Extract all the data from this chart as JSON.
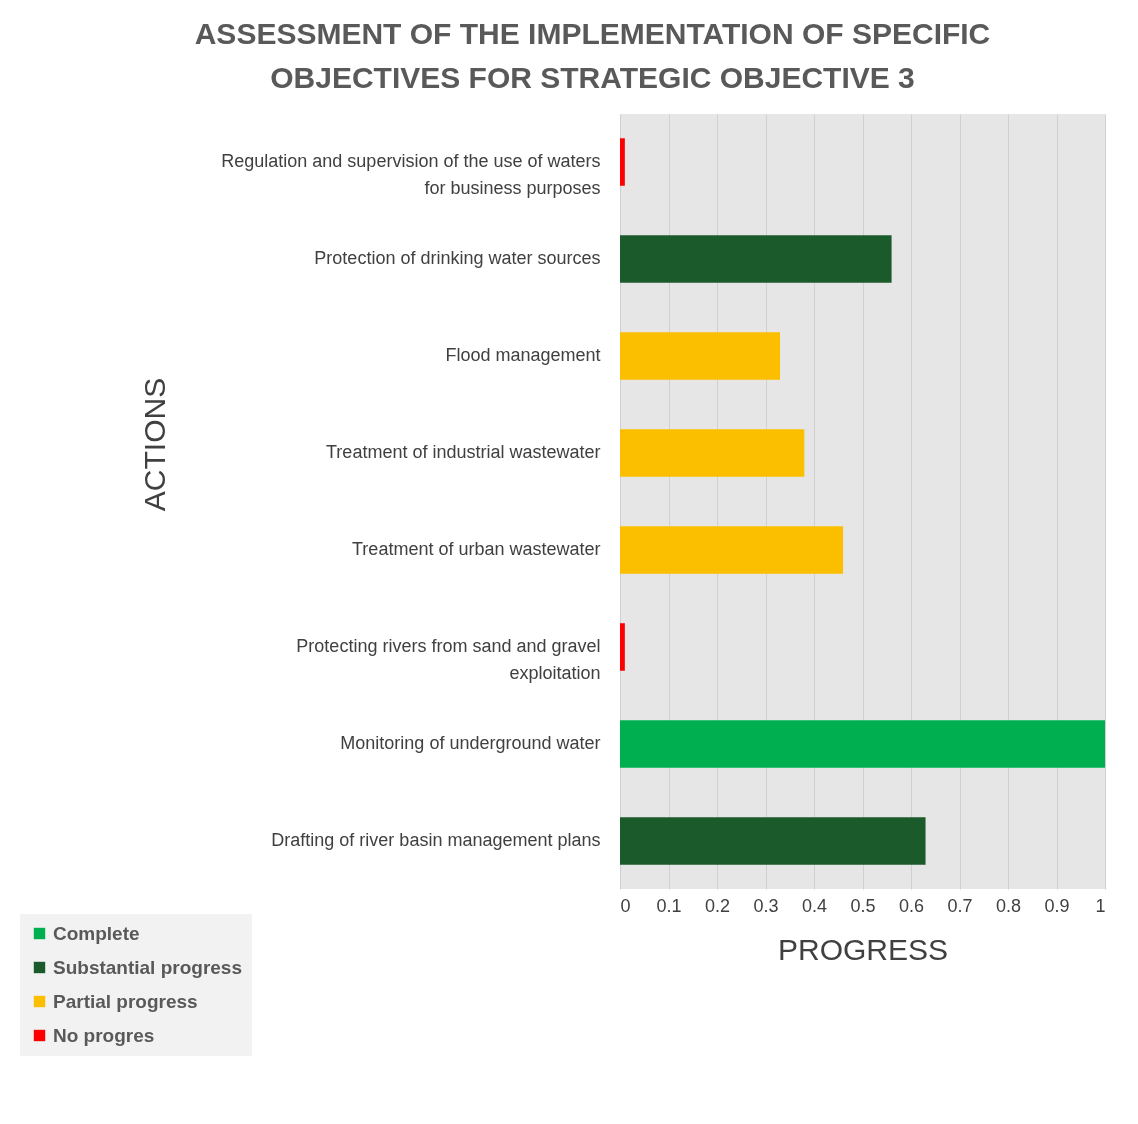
{
  "chart_data": {
    "type": "bar",
    "orientation": "horizontal",
    "title": "ASSESSMENT OF THE IMPLEMENTATION OF SPECIFIC OBJECTIVES FOR STRATEGIC OBJECTIVE 3",
    "xlabel": "PROGRESS",
    "ylabel": "ACTIONS",
    "categories": [
      "Regulation and supervision of the use of waters for business purposes",
      "Protection of drinking water sources",
      "Flood management",
      "Treatment of industrial wastewater",
      "Treatment of urban wastewater",
      "Protecting rivers from sand and gravel exploitation",
      "Monitoring of underground water",
      "Drafting of river basin management plans"
    ],
    "series": [
      {
        "name": "Complete",
        "color": "#00b050",
        "values": [
          null,
          null,
          null,
          null,
          null,
          null,
          1,
          null
        ]
      },
      {
        "name": "Substantial progress",
        "color": "#1b5a2b",
        "values": [
          null,
          0.56,
          null,
          null,
          null,
          null,
          null,
          0.63
        ]
      },
      {
        "name": "Partial progress",
        "color": "#fbbf00",
        "values": [
          null,
          null,
          0.33,
          0.38,
          0.46,
          null,
          null,
          null
        ]
      },
      {
        "name": "No progres",
        "color": "#ff0000",
        "values": [
          0.01,
          null,
          null,
          null,
          null,
          0.01,
          null,
          null
        ]
      }
    ],
    "xlim": [
      0,
      1
    ],
    "xticks": [
      0,
      0.1,
      0.2,
      0.3,
      0.4,
      0.5,
      0.6,
      0.7,
      0.8,
      0.9,
      1
    ],
    "grid": "x",
    "legend": "bottom left"
  }
}
